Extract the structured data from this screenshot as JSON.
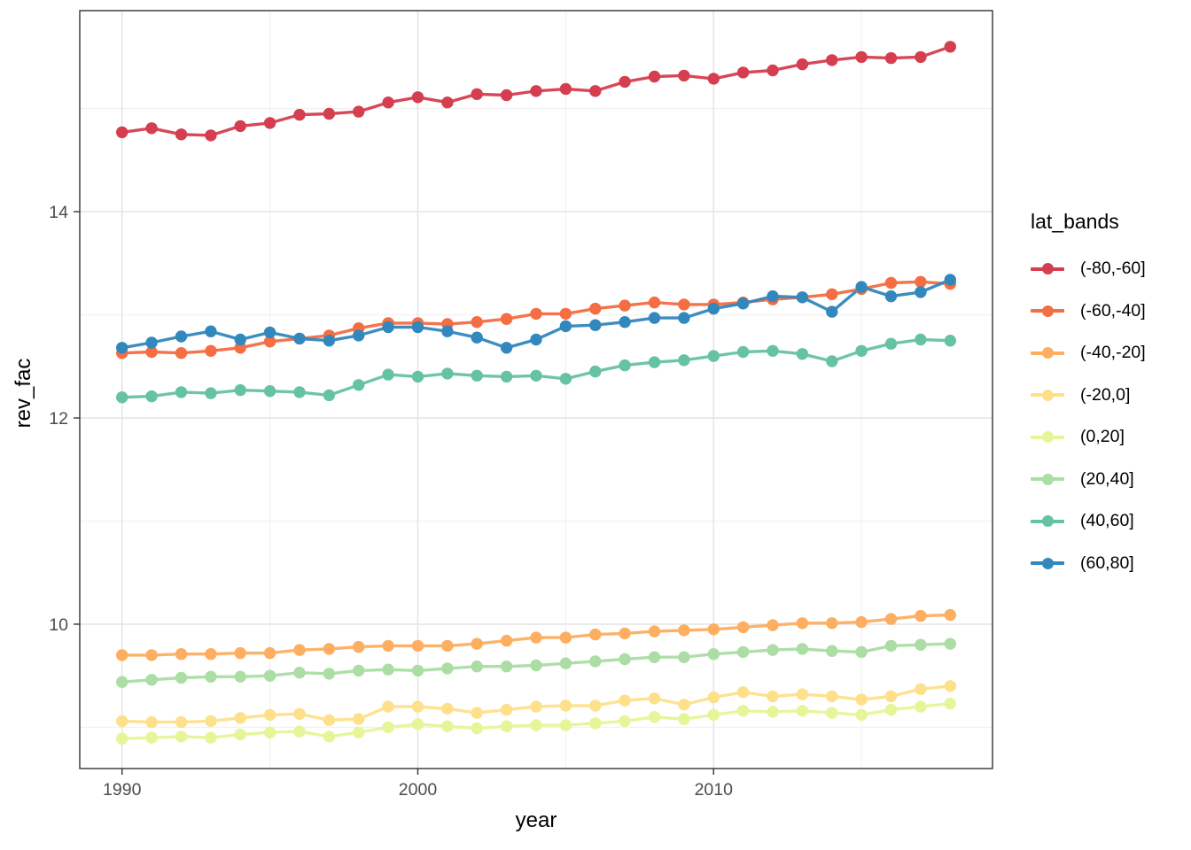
{
  "chart_data": {
    "type": "line",
    "xlabel": "year",
    "ylabel": "rev_fac",
    "legend_title": "lat_bands",
    "legend_position": "right",
    "grid": true,
    "marker": "circle",
    "xlim": [
      1988.57,
      2019.43
    ],
    "ylim": [
      8.6,
      15.95
    ],
    "x_ticks": [
      1990,
      2000,
      2010
    ],
    "x_tick_labels": [
      "1990",
      "2000",
      "2010"
    ],
    "x_minor": [
      1995,
      2005,
      2015
    ],
    "y_ticks": [
      10,
      12,
      14
    ],
    "y_tick_labels": [
      "10",
      "12",
      "14"
    ],
    "y_minor": [
      9,
      11,
      13,
      15
    ],
    "x": [
      1990,
      1991,
      1992,
      1993,
      1994,
      1995,
      1996,
      1997,
      1998,
      1999,
      2000,
      2001,
      2002,
      2003,
      2004,
      2005,
      2006,
      2007,
      2008,
      2009,
      2010,
      2011,
      2012,
      2013,
      2014,
      2015,
      2016,
      2017,
      2018
    ],
    "series": [
      {
        "name": "(-80,-60]",
        "color": "#D53E4F",
        "values": [
          14.77,
          14.81,
          14.75,
          14.74,
          14.83,
          14.86,
          14.94,
          14.95,
          14.97,
          15.06,
          15.11,
          15.06,
          15.14,
          15.13,
          15.17,
          15.19,
          15.17,
          15.26,
          15.31,
          15.32,
          15.29,
          15.35,
          15.37,
          15.43,
          15.47,
          15.5,
          15.49,
          15.5,
          15.6
        ]
      },
      {
        "name": "(-60,-40]",
        "color": "#F46D43",
        "values": [
          12.63,
          12.64,
          12.63,
          12.65,
          12.68,
          12.74,
          12.77,
          12.8,
          12.87,
          12.92,
          12.92,
          12.91,
          12.93,
          12.96,
          13.01,
          13.01,
          13.06,
          13.09,
          13.12,
          13.1,
          13.1,
          13.12,
          13.15,
          13.17,
          13.2,
          13.25,
          13.31,
          13.32,
          13.3
        ]
      },
      {
        "name": "(-40,-20]",
        "color": "#FDAE61",
        "values": [
          9.7,
          9.7,
          9.71,
          9.71,
          9.72,
          9.72,
          9.75,
          9.76,
          9.78,
          9.79,
          9.79,
          9.79,
          9.81,
          9.84,
          9.87,
          9.87,
          9.9,
          9.91,
          9.93,
          9.94,
          9.95,
          9.97,
          9.99,
          10.01,
          10.01,
          10.02,
          10.05,
          10.08,
          10.09
        ]
      },
      {
        "name": "(-20,0]",
        "color": "#FEE08B",
        "values": [
          9.06,
          9.05,
          9.05,
          9.06,
          9.09,
          9.12,
          9.13,
          9.07,
          9.08,
          9.2,
          9.2,
          9.18,
          9.14,
          9.17,
          9.2,
          9.21,
          9.21,
          9.26,
          9.28,
          9.22,
          9.29,
          9.34,
          9.3,
          9.32,
          9.3,
          9.27,
          9.3,
          9.37,
          9.4
        ]
      },
      {
        "name": "(0,20]",
        "color": "#E6F598",
        "values": [
          8.89,
          8.9,
          8.91,
          8.9,
          8.93,
          8.95,
          8.96,
          8.91,
          8.95,
          9.0,
          9.03,
          9.01,
          8.99,
          9.01,
          9.02,
          9.02,
          9.04,
          9.06,
          9.1,
          9.08,
          9.12,
          9.16,
          9.15,
          9.16,
          9.14,
          9.12,
          9.17,
          9.2,
          9.23
        ]
      },
      {
        "name": "(20,40]",
        "color": "#ABDDA4",
        "values": [
          9.44,
          9.46,
          9.48,
          9.49,
          9.49,
          9.5,
          9.53,
          9.52,
          9.55,
          9.56,
          9.55,
          9.57,
          9.59,
          9.59,
          9.6,
          9.62,
          9.64,
          9.66,
          9.68,
          9.68,
          9.71,
          9.73,
          9.75,
          9.76,
          9.74,
          9.73,
          9.79,
          9.8,
          9.81
        ]
      },
      {
        "name": "(40,60]",
        "color": "#66C2A5",
        "values": [
          12.2,
          12.21,
          12.25,
          12.24,
          12.27,
          12.26,
          12.25,
          12.22,
          12.32,
          12.42,
          12.4,
          12.43,
          12.41,
          12.4,
          12.41,
          12.38,
          12.45,
          12.51,
          12.54,
          12.56,
          12.6,
          12.64,
          12.65,
          12.62,
          12.55,
          12.65,
          12.72,
          12.76,
          12.75
        ]
      },
      {
        "name": "(60,80]",
        "color": "#3288BD",
        "values": [
          12.68,
          12.73,
          12.79,
          12.84,
          12.76,
          12.83,
          12.77,
          12.75,
          12.8,
          12.88,
          12.88,
          12.84,
          12.78,
          12.68,
          12.76,
          12.89,
          12.9,
          12.93,
          12.97,
          12.97,
          13.06,
          13.11,
          13.18,
          13.17,
          13.03,
          13.27,
          13.18,
          13.22,
          13.34
        ]
      }
    ],
    "style": {
      "panel_border": "#333333",
      "grid_major": "#e4e4e4",
      "grid_minor": "#efefef",
      "tick_label_color": "#4d4d4d",
      "point_radius": 6.7,
      "line_width": 3.4
    }
  }
}
